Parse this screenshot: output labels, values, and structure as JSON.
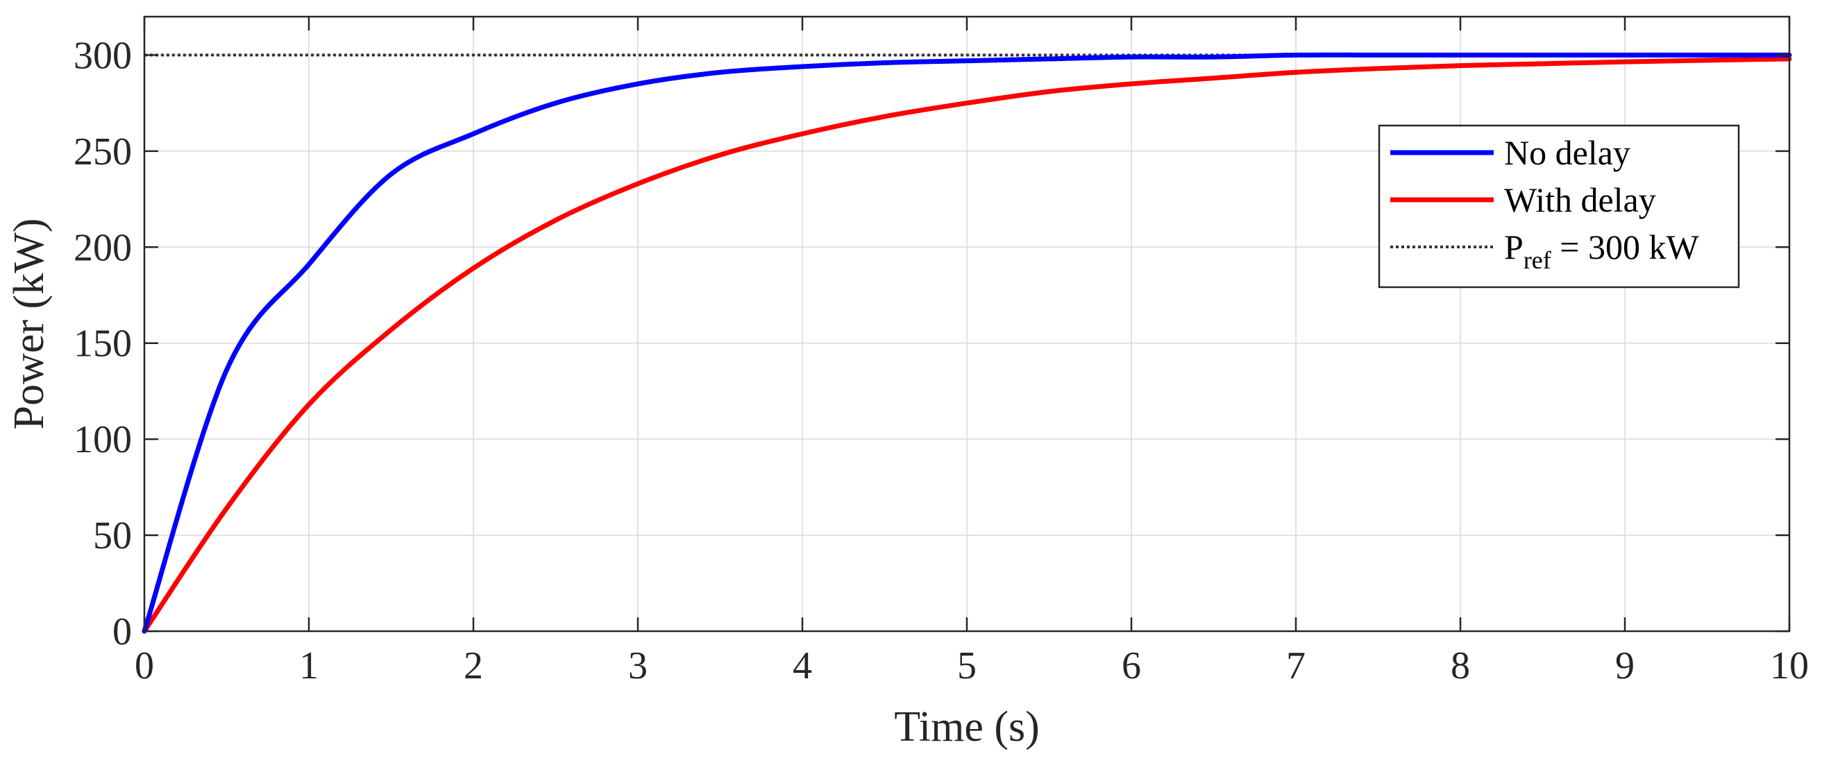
{
  "chart_data": {
    "type": "line",
    "title": "",
    "xlabel": "Time (s)",
    "ylabel": "Power (kW)",
    "xlim": [
      0,
      10
    ],
    "ylim": [
      0,
      320
    ],
    "xticks": [
      0,
      1,
      2,
      3,
      4,
      5,
      6,
      7,
      8,
      9,
      10
    ],
    "yticks": [
      0,
      50,
      100,
      150,
      200,
      250,
      300
    ],
    "grid": true,
    "legend_position": "top-right",
    "x": [
      0,
      0.5,
      1,
      1.5,
      2,
      2.5,
      3,
      3.5,
      4,
      4.5,
      5,
      5.5,
      6,
      6.5,
      7,
      7.5,
      8,
      8.5,
      9,
      9.5,
      10
    ],
    "series": [
      {
        "name": "No delay",
        "color": "#0000ff",
        "style": "solid",
        "values": [
          0,
          136,
          191,
          238,
          259,
          275,
          285,
          291,
          294,
          296,
          297,
          298,
          299,
          299,
          300,
          300,
          300,
          300,
          300,
          300,
          300
        ]
      },
      {
        "name": "With delay",
        "color": "#ff0000",
        "style": "solid",
        "values": [
          0,
          64,
          118,
          157,
          189,
          214,
          233,
          248,
          259,
          268,
          275,
          281,
          285,
          288,
          291,
          293,
          294.5,
          295.5,
          296.5,
          297.3,
          298
        ]
      },
      {
        "name": "P",
        "subscript": "ref",
        "name_suffix": " = 300 kW",
        "color": "#333333",
        "style": "dotted",
        "values": [
          300,
          300,
          300,
          300,
          300,
          300,
          300,
          300,
          300,
          300,
          300,
          300,
          300,
          300,
          300,
          300,
          300,
          300,
          300,
          300,
          300
        ]
      }
    ]
  }
}
